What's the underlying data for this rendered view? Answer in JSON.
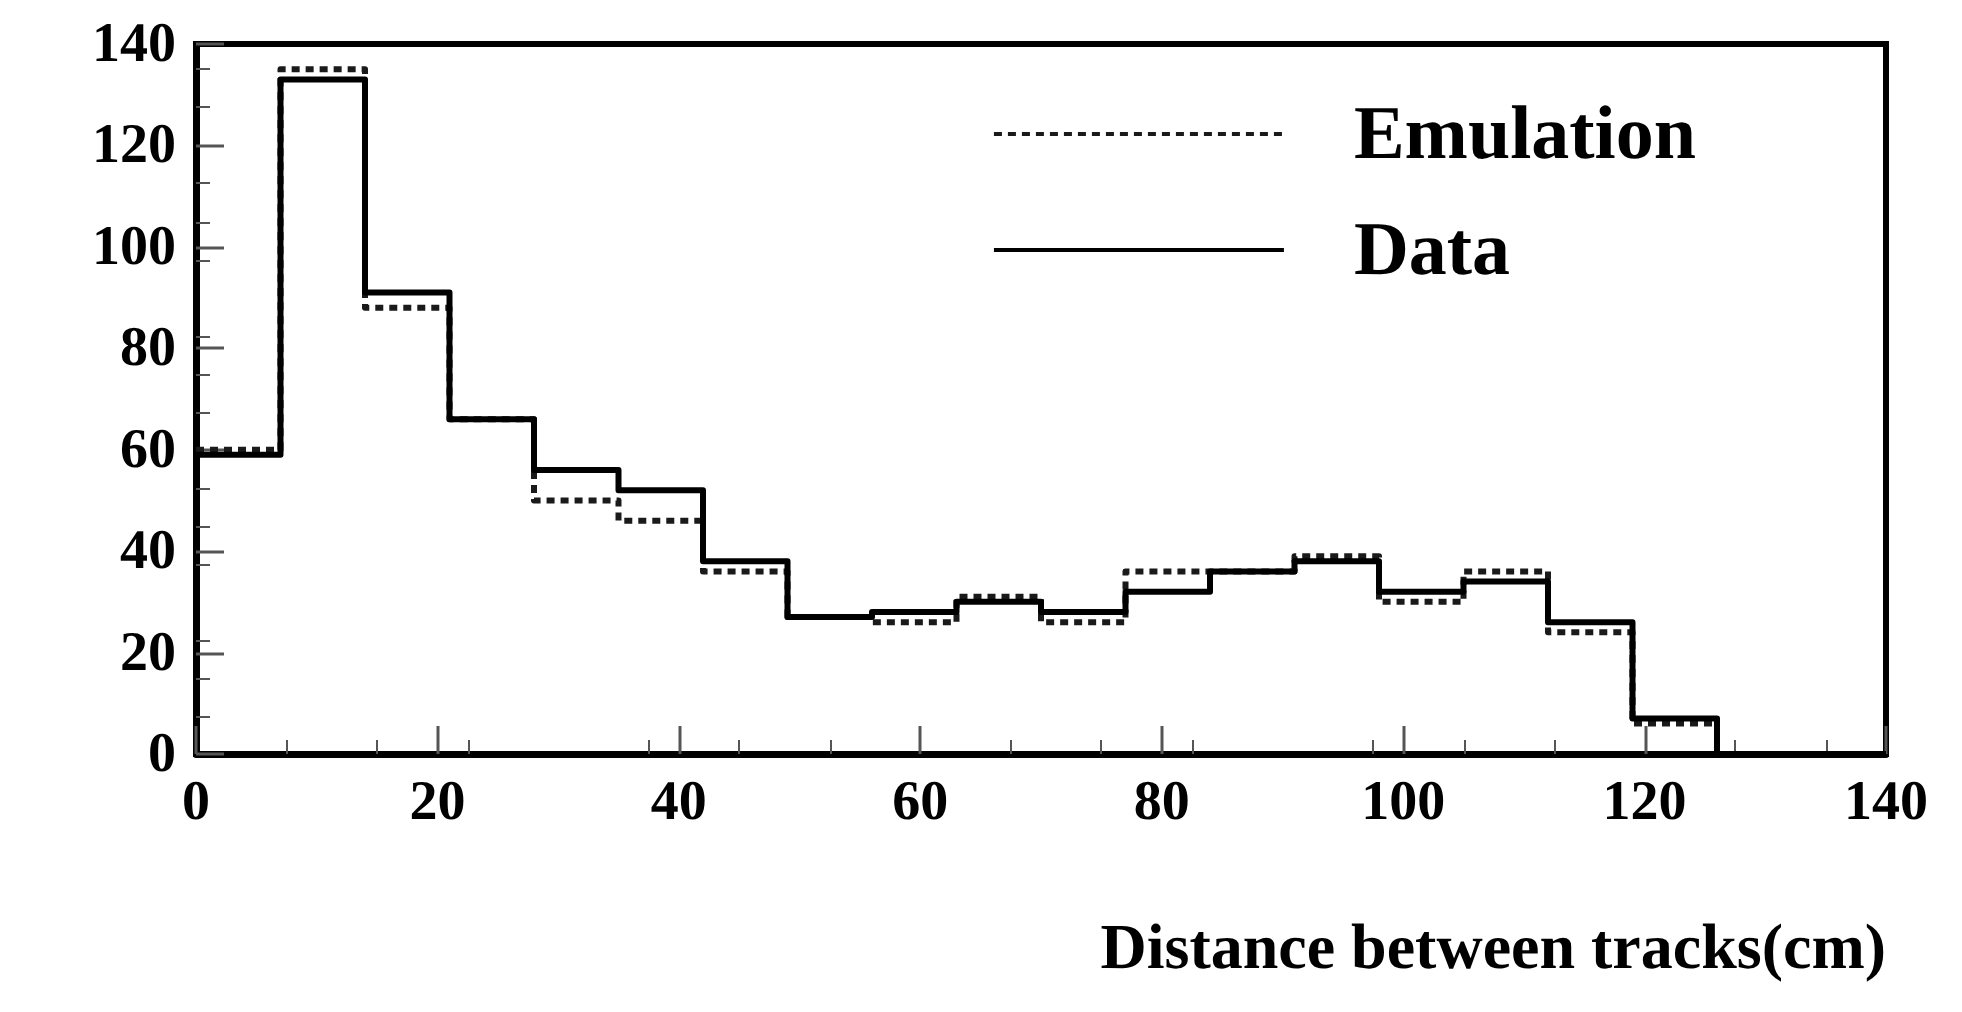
{
  "chart_data": {
    "type": "histogram",
    "xlabel": "Distance between tracks(cm)",
    "bins": [
      0,
      7,
      14,
      21,
      28,
      35,
      42,
      49,
      56,
      63,
      70,
      77,
      84,
      91,
      98,
      105,
      112,
      119,
      126,
      133,
      140
    ],
    "series": [
      {
        "name": "Emulation",
        "color": "#1a1a1a",
        "line_style": "dotted",
        "values": [
          60,
          135,
          88,
          66,
          50,
          46,
          36,
          27,
          26,
          31,
          26,
          36,
          36,
          39,
          30,
          36,
          24,
          6,
          0,
          0
        ]
      },
      {
        "name": "Data",
        "color": "#000000",
        "line_style": "solid",
        "values": [
          59,
          133,
          91,
          66,
          56,
          52,
          38,
          27,
          28,
          30,
          28,
          32,
          36,
          38,
          32,
          34,
          26,
          7,
          0,
          0
        ]
      }
    ],
    "xlim": [
      0,
      140
    ],
    "xticks": [
      0,
      20,
      40,
      60,
      80,
      100,
      120,
      140
    ],
    "ylim": [
      0,
      140
    ],
    "yticks": [
      0,
      20,
      40,
      60,
      80,
      100,
      120,
      140
    ],
    "grid": false,
    "legend": "top right"
  }
}
